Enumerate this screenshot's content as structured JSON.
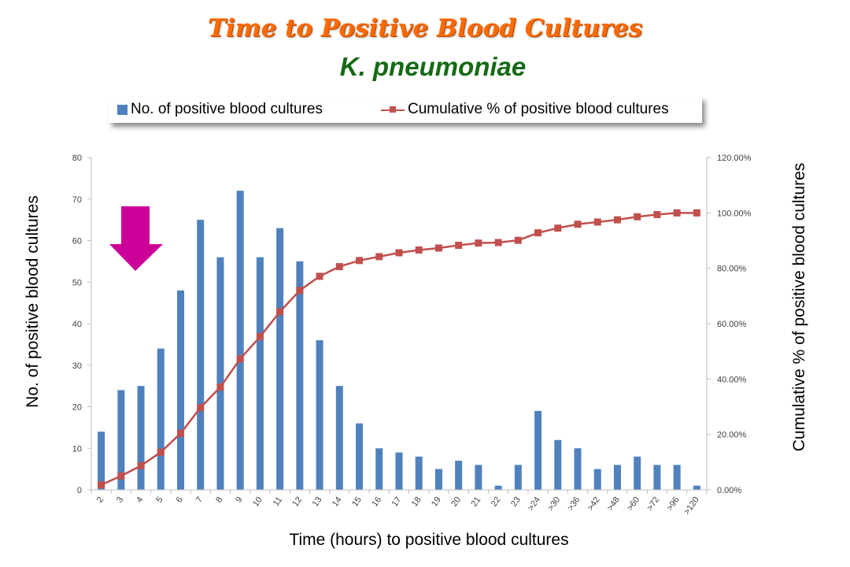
{
  "header": {
    "title": "Time to Positive Blood Cultures",
    "subtitle": "K. pneumoniae"
  },
  "colors": {
    "title": "#ff6a00",
    "subtitle": "#146a14",
    "bar": "#4f81bd",
    "line": "#c0504d",
    "arrow": "#cc0099",
    "axis": "#bfbfbf"
  },
  "chart_data": {
    "type": "bar",
    "xlabel": "Time (hours) to positive blood cultures",
    "ylabel": "No. of positive blood cultures",
    "y2label": "Cumulative % of positive blood cultures",
    "categories": [
      "2",
      "3",
      "4",
      "5",
      "6",
      "7",
      "8",
      "9",
      "10",
      "11",
      "12",
      "13",
      "14",
      "15",
      "16",
      "17",
      "18",
      "19",
      "20",
      "21",
      "22",
      "23",
      ">24",
      ">30",
      ">36",
      ">42",
      ">48",
      ">60",
      ">72",
      ">96",
      ">120"
    ],
    "series": [
      {
        "name": "No. of positive blood cultures",
        "type": "bar",
        "axis": "left",
        "values": [
          14,
          24,
          25,
          34,
          48,
          65,
          56,
          72,
          56,
          63,
          55,
          36,
          25,
          16,
          10,
          9,
          8,
          5,
          7,
          6,
          1,
          6,
          19,
          12,
          10,
          5,
          6,
          8,
          6,
          6,
          1
        ]
      },
      {
        "name": "Cumulative % of positive blood cultures",
        "type": "line",
        "axis": "right",
        "values": [
          1.8,
          5.0,
          8.7,
          13.6,
          20.4,
          29.7,
          37.1,
          47.3,
          55.3,
          64.3,
          72.0,
          77.1,
          80.6,
          82.8,
          84.2,
          85.6,
          86.6,
          87.3,
          88.3,
          89.1,
          89.3,
          90.1,
          92.8,
          94.5,
          95.9,
          96.7,
          97.5,
          98.6,
          99.4,
          100.0,
          100.0
        ]
      }
    ],
    "ylim": [
      0,
      80
    ],
    "yticks": [
      0,
      10,
      20,
      30,
      40,
      50,
      60,
      70,
      80
    ],
    "y2lim": [
      0,
      120
    ],
    "y2ticks": [
      "0.00%",
      "20.00%",
      "40.00%",
      "60.00%",
      "80.00%",
      "100.00%",
      "120.00%"
    ],
    "legend_position": "top",
    "grid": false,
    "annotation": "downward arrow above category 4"
  }
}
